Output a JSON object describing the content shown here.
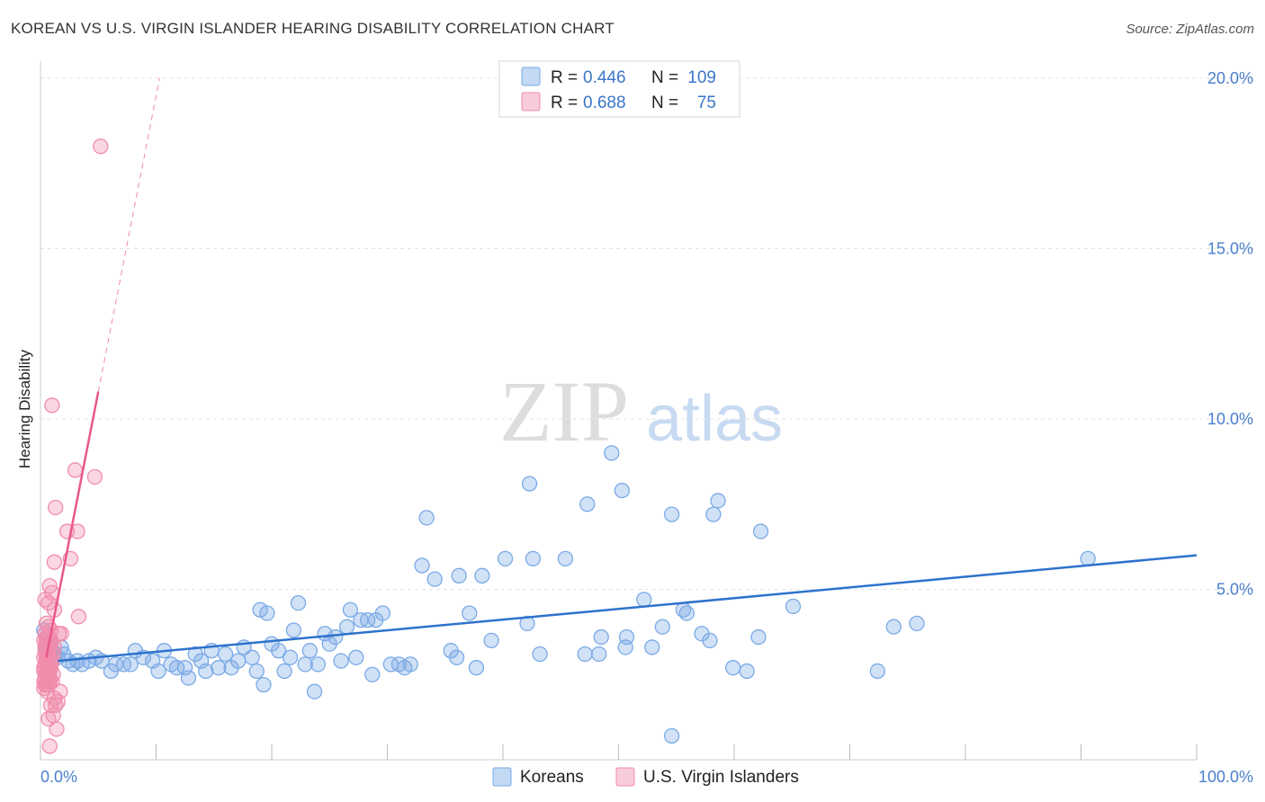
{
  "title": "KOREAN VS U.S. VIRGIN ISLANDER HEARING DISABILITY CORRELATION CHART",
  "source": "Source: ZipAtlas.com",
  "watermark": {
    "zip": "ZIP",
    "atlas": "atlas"
  },
  "chart_data": {
    "type": "scatter",
    "ylabel": "Hearing Disability",
    "xlabel": "",
    "xlim": [
      0,
      100
    ],
    "ylim": [
      0,
      20.5
    ],
    "x_tick_labels": [
      "0.0%",
      "100.0%"
    ],
    "y_ticks": [
      {
        "value": 5,
        "label": "5.0%"
      },
      {
        "value": 10,
        "label": "10.0%"
      },
      {
        "value": 15,
        "label": "15.0%"
      },
      {
        "value": 20,
        "label": "20.0%"
      }
    ],
    "legend": [
      {
        "name": "Koreans",
        "r_label": "R =",
        "r": "0.446",
        "n_label": "N =",
        "n": "109",
        "color": "#7aaae6"
      },
      {
        "name": "U.S. Virgin Islanders",
        "r_label": "R =",
        "r": "0.688",
        "n_label": "N =",
        "n": "75",
        "color": "#f08cab"
      }
    ],
    "series": [
      {
        "name": "Koreans",
        "color": "#7aaae6",
        "line_color": "#2e72cc",
        "trend": {
          "x0": 1.5,
          "y0": 2.9,
          "x1": 100,
          "y1": 6.0
        },
        "points": [
          [
            0.3,
            3.8
          ],
          [
            0.5,
            3.3
          ],
          [
            0.8,
            3.5
          ],
          [
            1.0,
            3.2
          ],
          [
            1.2,
            3.1
          ],
          [
            1.5,
            3.0
          ],
          [
            1.8,
            3.3
          ],
          [
            2.0,
            3.1
          ],
          [
            2.4,
            2.9
          ],
          [
            2.8,
            2.8
          ],
          [
            3.2,
            2.9
          ],
          [
            3.6,
            2.8
          ],
          [
            4.2,
            2.9
          ],
          [
            4.8,
            3.0
          ],
          [
            5.3,
            2.9
          ],
          [
            6.1,
            2.6
          ],
          [
            6.5,
            2.8
          ],
          [
            7.2,
            2.8
          ],
          [
            7.8,
            2.8
          ],
          [
            8.2,
            3.2
          ],
          [
            8.9,
            3.0
          ],
          [
            9.7,
            2.9
          ],
          [
            10.2,
            2.6
          ],
          [
            10.7,
            3.2
          ],
          [
            11.3,
            2.8
          ],
          [
            11.8,
            2.7
          ],
          [
            12.5,
            2.7
          ],
          [
            12.8,
            2.4
          ],
          [
            13.4,
            3.1
          ],
          [
            13.9,
            2.9
          ],
          [
            14.3,
            2.6
          ],
          [
            14.8,
            3.2
          ],
          [
            15.4,
            2.7
          ],
          [
            16.0,
            3.1
          ],
          [
            16.5,
            2.7
          ],
          [
            17.1,
            2.9
          ],
          [
            17.6,
            3.3
          ],
          [
            18.3,
            3.0
          ],
          [
            18.7,
            2.6
          ],
          [
            19.0,
            4.4
          ],
          [
            19.3,
            2.2
          ],
          [
            19.6,
            4.3
          ],
          [
            20.0,
            3.4
          ],
          [
            20.6,
            3.2
          ],
          [
            21.1,
            2.6
          ],
          [
            21.6,
            3.0
          ],
          [
            21.9,
            3.8
          ],
          [
            22.3,
            4.6
          ],
          [
            22.9,
            2.8
          ],
          [
            23.3,
            3.2
          ],
          [
            23.7,
            2.0
          ],
          [
            24.0,
            2.8
          ],
          [
            24.6,
            3.7
          ],
          [
            25.0,
            3.4
          ],
          [
            25.5,
            3.6
          ],
          [
            26.0,
            2.9
          ],
          [
            26.5,
            3.9
          ],
          [
            26.8,
            4.4
          ],
          [
            27.3,
            3.0
          ],
          [
            27.7,
            4.1
          ],
          [
            28.3,
            4.1
          ],
          [
            28.7,
            2.5
          ],
          [
            29.0,
            4.1
          ],
          [
            29.6,
            4.3
          ],
          [
            30.3,
            2.8
          ],
          [
            31.0,
            2.8
          ],
          [
            31.5,
            2.7
          ],
          [
            32.0,
            2.8
          ],
          [
            33.0,
            5.7
          ],
          [
            33.4,
            7.1
          ],
          [
            34.1,
            5.3
          ],
          [
            35.5,
            3.2
          ],
          [
            36.0,
            3.0
          ],
          [
            36.2,
            5.4
          ],
          [
            37.1,
            4.3
          ],
          [
            37.7,
            2.7
          ],
          [
            38.2,
            5.4
          ],
          [
            39.0,
            3.5
          ],
          [
            40.2,
            5.9
          ],
          [
            42.1,
            4.0
          ],
          [
            42.3,
            8.1
          ],
          [
            42.6,
            5.9
          ],
          [
            43.2,
            3.1
          ],
          [
            45.4,
            5.9
          ],
          [
            47.1,
            3.1
          ],
          [
            47.3,
            7.5
          ],
          [
            48.3,
            3.1
          ],
          [
            48.5,
            3.6
          ],
          [
            49.4,
            9.0
          ],
          [
            50.3,
            7.9
          ],
          [
            50.6,
            3.3
          ],
          [
            50.7,
            3.6
          ],
          [
            52.2,
            4.7
          ],
          [
            52.9,
            3.3
          ],
          [
            53.8,
            3.9
          ],
          [
            54.6,
            7.2
          ],
          [
            55.6,
            4.4
          ],
          [
            55.9,
            4.3
          ],
          [
            57.2,
            3.7
          ],
          [
            57.9,
            3.5
          ],
          [
            58.2,
            7.2
          ],
          [
            58.6,
            7.6
          ],
          [
            59.9,
            2.7
          ],
          [
            61.1,
            2.6
          ],
          [
            62.1,
            3.6
          ],
          [
            62.3,
            6.7
          ],
          [
            65.1,
            4.5
          ],
          [
            72.4,
            2.6
          ],
          [
            73.8,
            3.9
          ],
          [
            75.8,
            4.0
          ],
          [
            90.6,
            5.9
          ],
          [
            54.6,
            0.7
          ]
        ]
      },
      {
        "name": "U.S. Virgin Islanders",
        "color": "#f08cab",
        "line_color": "#e8588a",
        "trend": {
          "x0": 0.5,
          "y0": 3.0,
          "x1": 5.0,
          "y1": 10.8
        },
        "dash": {
          "x0": 5.0,
          "y0": 10.8,
          "x1": 10.3,
          "y1": 20.0
        },
        "points": [
          [
            5.2,
            18.0
          ],
          [
            1.0,
            10.4
          ],
          [
            3.0,
            8.5
          ],
          [
            4.7,
            8.3
          ],
          [
            1.3,
            7.4
          ],
          [
            2.3,
            6.7
          ],
          [
            3.2,
            6.7
          ],
          [
            2.6,
            5.9
          ],
          [
            1.2,
            5.8
          ],
          [
            0.8,
            5.1
          ],
          [
            1.0,
            4.9
          ],
          [
            0.7,
            4.6
          ],
          [
            0.4,
            4.7
          ],
          [
            1.2,
            4.4
          ],
          [
            3.3,
            4.2
          ],
          [
            0.5,
            4.0
          ],
          [
            0.7,
            3.9
          ],
          [
            1.8,
            3.7
          ],
          [
            0.6,
            3.6
          ],
          [
            0.3,
            3.5
          ],
          [
            0.9,
            3.5
          ],
          [
            0.5,
            3.4
          ],
          [
            0.7,
            3.3
          ],
          [
            0.4,
            3.2
          ],
          [
            0.6,
            3.1
          ],
          [
            0.8,
            3.0
          ],
          [
            0.3,
            3.0
          ],
          [
            0.5,
            2.9
          ],
          [
            0.7,
            2.8
          ],
          [
            0.4,
            2.8
          ],
          [
            0.6,
            2.7
          ],
          [
            0.9,
            2.7
          ],
          [
            0.3,
            2.6
          ],
          [
            0.5,
            2.6
          ],
          [
            0.7,
            2.5
          ],
          [
            1.1,
            2.5
          ],
          [
            0.4,
            2.4
          ],
          [
            0.6,
            2.4
          ],
          [
            0.8,
            2.3
          ],
          [
            0.3,
            2.3
          ],
          [
            0.5,
            2.2
          ],
          [
            0.7,
            2.2
          ],
          [
            1.7,
            2.0
          ],
          [
            1.2,
            1.8
          ],
          [
            1.5,
            1.7
          ],
          [
            0.9,
            1.6
          ],
          [
            1.3,
            1.6
          ],
          [
            1.1,
            1.3
          ],
          [
            0.7,
            1.2
          ],
          [
            1.4,
            0.9
          ],
          [
            0.8,
            0.4
          ],
          [
            0.4,
            3.7
          ],
          [
            0.9,
            3.4
          ],
          [
            1.2,
            3.3
          ],
          [
            0.6,
            2.9
          ],
          [
            0.8,
            2.6
          ],
          [
            0.5,
            2.5
          ],
          [
            1.0,
            2.3
          ],
          [
            0.3,
            2.1
          ],
          [
            0.6,
            2.0
          ],
          [
            0.9,
            3.8
          ],
          [
            1.6,
            3.7
          ],
          [
            0.4,
            3.3
          ],
          [
            0.7,
            3.2
          ],
          [
            0.5,
            3.0
          ],
          [
            1.0,
            2.9
          ],
          [
            0.3,
            2.7
          ],
          [
            0.8,
            2.4
          ],
          [
            0.6,
            2.3
          ],
          [
            0.4,
            2.2
          ],
          [
            0.7,
            3.6
          ],
          [
            0.5,
            3.5
          ],
          [
            1.1,
            3.1
          ],
          [
            0.9,
            2.8
          ],
          [
            0.6,
            2.6
          ]
        ]
      }
    ]
  }
}
